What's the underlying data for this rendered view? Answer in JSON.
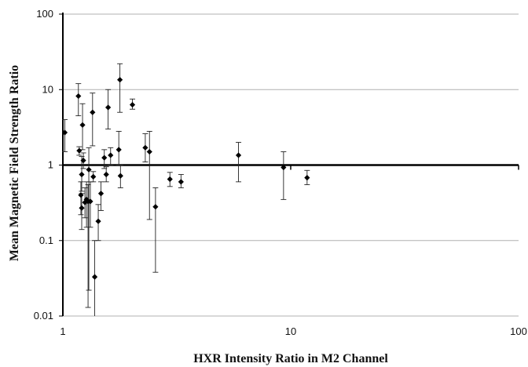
{
  "chart_data": {
    "type": "scatter",
    "title": "",
    "xlabel": "HXR Intensity Ratio in M2 Channel",
    "ylabel": "Mean Magnetic Field Strength Ratio",
    "x_scale": "log",
    "y_scale": "log",
    "xlim": [
      1,
      100
    ],
    "ylim": [
      0.01,
      100
    ],
    "x_ticks": [
      "1",
      "10",
      "100"
    ],
    "y_ticks": [
      "0.01",
      "0.1",
      "1",
      "10",
      "100"
    ],
    "grid": "horizontal",
    "reference_line_y": 1,
    "colors": {
      "points": "#000000",
      "grid": "#b0b0b0",
      "axes": "#000000"
    },
    "points": [
      {
        "x": 1.02,
        "y": 2.7,
        "err_low": 1.5,
        "err_high": 4.0
      },
      {
        "x": 1.17,
        "y": 8.2,
        "err_low": 4.5,
        "err_high": 12.0
      },
      {
        "x": 1.18,
        "y": 1.55,
        "err_low": 1.35,
        "err_high": 1.75
      },
      {
        "x": 1.2,
        "y": 0.4,
        "err_low": 0.22,
        "err_high": 0.6
      },
      {
        "x": 1.21,
        "y": 0.27,
        "err_low": 0.14,
        "err_high": 0.42
      },
      {
        "x": 1.21,
        "y": 0.75,
        "err_low": 0.45,
        "err_high": 1.3
      },
      {
        "x": 1.22,
        "y": 3.4,
        "err_low": 1.6,
        "err_high": 6.5
      },
      {
        "x": 1.23,
        "y": 1.15,
        "err_low": 0.9,
        "err_high": 1.45
      },
      {
        "x": 1.25,
        "y": 0.32,
        "err_low": 0.2,
        "err_high": 0.5
      },
      {
        "x": 1.27,
        "y": 0.35,
        "err_low": 0.15,
        "err_high": 0.6
      },
      {
        "x": 1.29,
        "y": 0.33,
        "err_low": 0.013,
        "err_high": 0.55
      },
      {
        "x": 1.3,
        "y": 0.87,
        "err_low": 0.022,
        "err_high": 1.7
      },
      {
        "x": 1.32,
        "y": 0.33,
        "err_low": 0.15,
        "err_high": 0.6
      },
      {
        "x": 1.35,
        "y": 5.0,
        "err_low": 1.8,
        "err_high": 9.0
      },
      {
        "x": 1.36,
        "y": 0.7,
        "err_low": 0.6,
        "err_high": 0.82
      },
      {
        "x": 1.38,
        "y": 0.033,
        "err_low": 0.01,
        "err_high": 0.1
      },
      {
        "x": 1.43,
        "y": 0.18,
        "err_low": 0.1,
        "err_high": 0.3
      },
      {
        "x": 1.47,
        "y": 0.42,
        "err_low": 0.25,
        "err_high": 0.6
      },
      {
        "x": 1.52,
        "y": 1.25,
        "err_low": 0.9,
        "err_high": 1.6
      },
      {
        "x": 1.55,
        "y": 0.75,
        "err_low": 0.6,
        "err_high": 0.95
      },
      {
        "x": 1.58,
        "y": 5.8,
        "err_low": 3.0,
        "err_high": 10.0
      },
      {
        "x": 1.62,
        "y": 1.35,
        "err_low": 1.0,
        "err_high": 1.7
      },
      {
        "x": 1.76,
        "y": 1.6,
        "err_low": 1.0,
        "err_high": 2.8
      },
      {
        "x": 1.78,
        "y": 13.5,
        "err_low": 5.0,
        "err_high": 22.0
      },
      {
        "x": 1.79,
        "y": 0.72,
        "err_low": 0.5,
        "err_high": 1.0
      },
      {
        "x": 2.02,
        "y": 6.3,
        "err_low": 5.5,
        "err_high": 7.5
      },
      {
        "x": 2.3,
        "y": 1.7,
        "err_low": 1.1,
        "err_high": 2.6
      },
      {
        "x": 2.4,
        "y": 1.5,
        "err_low": 0.19,
        "err_high": 2.8
      },
      {
        "x": 2.55,
        "y": 0.28,
        "err_low": 0.038,
        "err_high": 0.5
      },
      {
        "x": 2.95,
        "y": 0.65,
        "err_low": 0.52,
        "err_high": 0.8
      },
      {
        "x": 3.3,
        "y": 0.6,
        "err_low": 0.5,
        "err_high": 0.75
      },
      {
        "x": 5.9,
        "y": 1.35,
        "err_low": 0.6,
        "err_high": 2.0
      },
      {
        "x": 9.3,
        "y": 0.93,
        "err_low": 0.35,
        "err_high": 1.5
      },
      {
        "x": 11.8,
        "y": 0.68,
        "err_low": 0.55,
        "err_high": 0.85
      }
    ]
  }
}
